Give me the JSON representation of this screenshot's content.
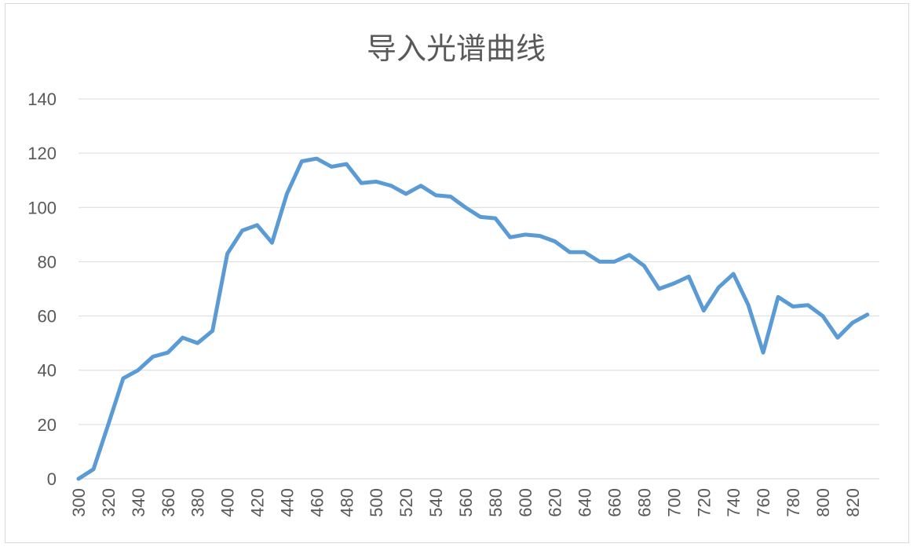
{
  "chart_data": {
    "type": "line",
    "title": "导入光谱曲线",
    "xlabel": "",
    "ylabel": "",
    "ylim": [
      0,
      140
    ],
    "yticks": [
      0,
      20,
      40,
      60,
      80,
      100,
      120,
      140
    ],
    "xticks": [
      300,
      320,
      340,
      360,
      380,
      400,
      420,
      440,
      460,
      480,
      500,
      520,
      540,
      560,
      580,
      600,
      620,
      640,
      660,
      680,
      700,
      720,
      740,
      760,
      780,
      800,
      820
    ],
    "grid": true,
    "legend": "none",
    "color": "#5b9bd5",
    "x": [
      300,
      310,
      320,
      330,
      340,
      350,
      360,
      370,
      380,
      390,
      400,
      410,
      420,
      430,
      440,
      450,
      460,
      470,
      480,
      490,
      500,
      510,
      520,
      530,
      540,
      550,
      560,
      570,
      580,
      590,
      600,
      610,
      620,
      630,
      640,
      650,
      660,
      670,
      680,
      690,
      700,
      710,
      720,
      730,
      740,
      750,
      760,
      770,
      780,
      790,
      800,
      810,
      820,
      830
    ],
    "series": [
      {
        "values": [
          0,
          3.5,
          20,
          37,
          40,
          45,
          46.5,
          52,
          50,
          54.5,
          83,
          91.5,
          93.5,
          87,
          105,
          117,
          118,
          115,
          116,
          109,
          109.5,
          108,
          105,
          108,
          104.5,
          104,
          100,
          96.5,
          96,
          89,
          90,
          89.5,
          87.5,
          83.5,
          83.5,
          80,
          80,
          82.5,
          78.5,
          70,
          72,
          74.5,
          62,
          70.5,
          75.5,
          64,
          46.5,
          67,
          63.5,
          64,
          60,
          52,
          57.5,
          60.5
        ]
      }
    ]
  }
}
